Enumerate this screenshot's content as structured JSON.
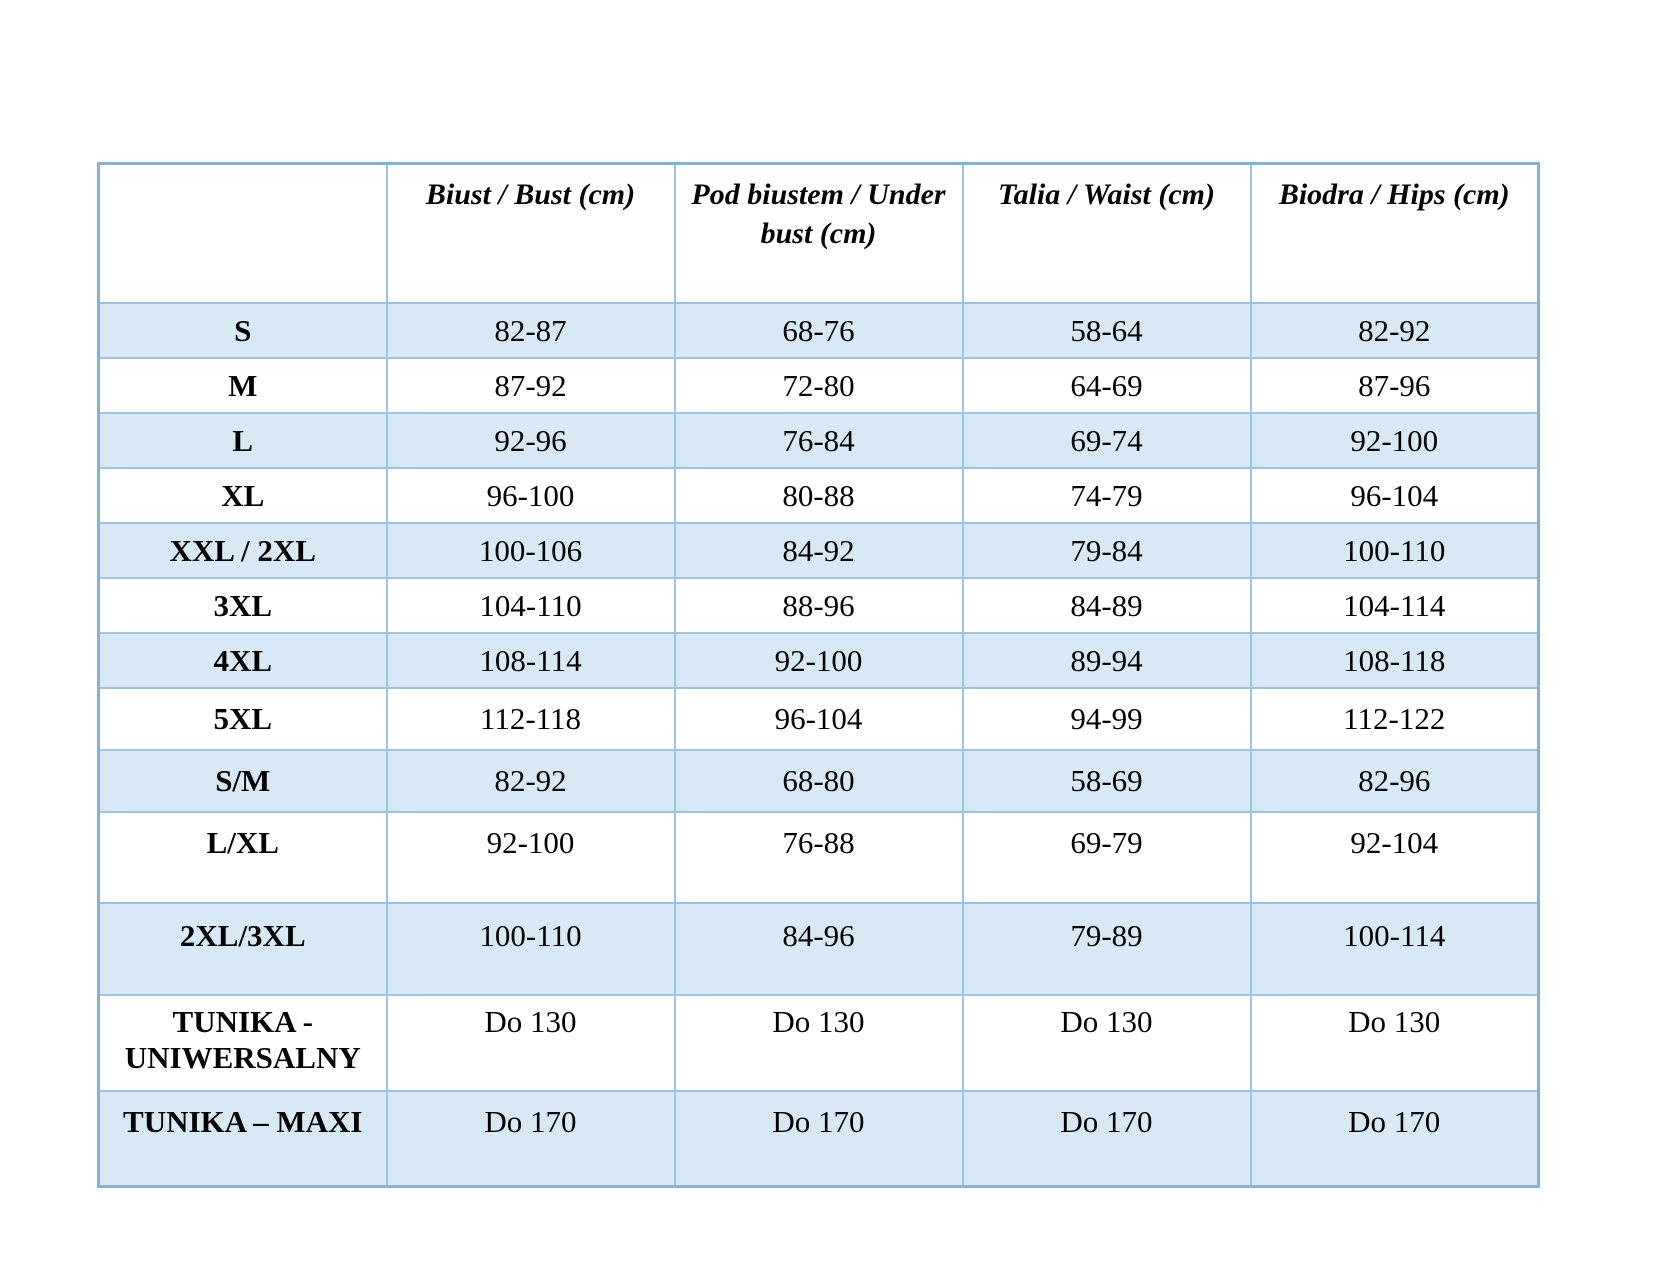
{
  "table": {
    "columns": [
      "",
      "Biust / Bust (cm)",
      "Pod biustem / Under bust (cm)",
      "Talia / Waist (cm)",
      "Biodra / Hips (cm)"
    ],
    "rows": [
      {
        "cells": [
          "S",
          "82-87",
          "68-76",
          "58-64",
          "82-92"
        ]
      },
      {
        "cells": [
          "M",
          "87-92",
          "72-80",
          "64-69",
          "87-96"
        ]
      },
      {
        "cells": [
          "L",
          "92-96",
          "76-84",
          "69-74",
          "92-100"
        ]
      },
      {
        "cells": [
          "XL",
          "96-100",
          "80-88",
          "74-79",
          "96-104"
        ]
      },
      {
        "cells": [
          "XXL / 2XL",
          "100-106",
          "84-92",
          "79-84",
          "100-110"
        ]
      },
      {
        "cells": [
          "3XL",
          "104-110",
          "88-96",
          "84-89",
          "104-114"
        ]
      },
      {
        "cells": [
          "4XL",
          "108-114",
          "92-100",
          "89-94",
          "108-118"
        ]
      },
      {
        "cells": [
          "5XL",
          "112-118",
          "96-104",
          "94-99",
          "112-122"
        ]
      },
      {
        "cells": [
          "S/M",
          "82-92",
          "68-80",
          "58-69",
          "82-96"
        ]
      },
      {
        "cells": [
          "L/XL",
          "92-100",
          "76-88",
          "69-79",
          "92-104"
        ]
      },
      {
        "cells": [
          "2XL/3XL",
          "100-110",
          "84-96",
          "79-89",
          "100-114"
        ]
      },
      {
        "cells": [
          "TUNIKA - UNIWERSALNY",
          "Do 130",
          "Do 130",
          "Do 130",
          "Do 130"
        ]
      },
      {
        "cells": [
          "TUNIKA – MAXI",
          "Do 170",
          "Do 170",
          "Do 170",
          "Do 170"
        ]
      }
    ]
  },
  "colors": {
    "stripe_fill": "#d7e9f4",
    "inner_border": "#9dc3e1",
    "outer_border": "#88b0d3",
    "text": "#040404"
  }
}
